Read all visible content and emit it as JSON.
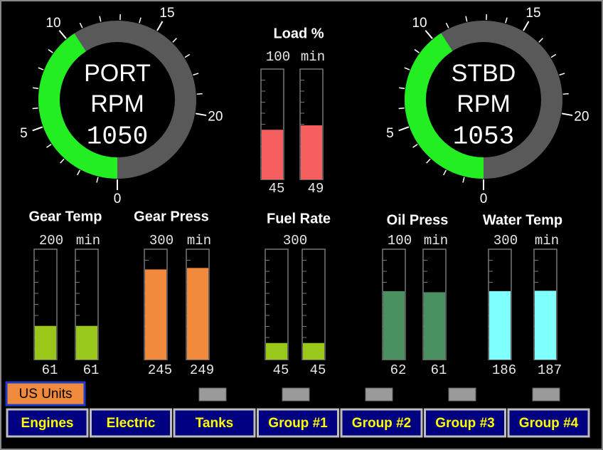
{
  "gauges": [
    {
      "name": "PORT",
      "unit": "RPM",
      "value": 1050,
      "scale": [
        0,
        5,
        10,
        15,
        20
      ]
    },
    {
      "name": "STBD",
      "unit": "RPM",
      "value": 1053,
      "scale": [
        0,
        5,
        10,
        15,
        20
      ]
    }
  ],
  "bar_groups": [
    {
      "title": "Load %",
      "max": 100,
      "min": "min",
      "color": "#f55f5f",
      "values": [
        45,
        49
      ]
    },
    {
      "title": "Gear Temp",
      "max": 200,
      "min": "min",
      "color": "#99c81a",
      "values": [
        61,
        61
      ]
    },
    {
      "title": "Gear Press",
      "max": 300,
      "min": "min",
      "color": "#f28a3e",
      "values": [
        245,
        249
      ]
    },
    {
      "title": "Fuel Rate",
      "max": 300,
      "color": "#99c81a",
      "values": [
        45,
        45
      ]
    },
    {
      "title": "Oil Press",
      "max": 100,
      "min": "min",
      "color": "#4a9060",
      "values": [
        62,
        61
      ]
    },
    {
      "title": "Water Temp",
      "max": 300,
      "min": "min",
      "color": "#80ffff",
      "values": [
        186,
        187
      ]
    }
  ],
  "units_button": "US Units",
  "tabs": [
    "Engines",
    "Electric",
    "Tanks",
    "Group #1",
    "Group #2",
    "Group #3",
    "Group #4"
  ]
}
